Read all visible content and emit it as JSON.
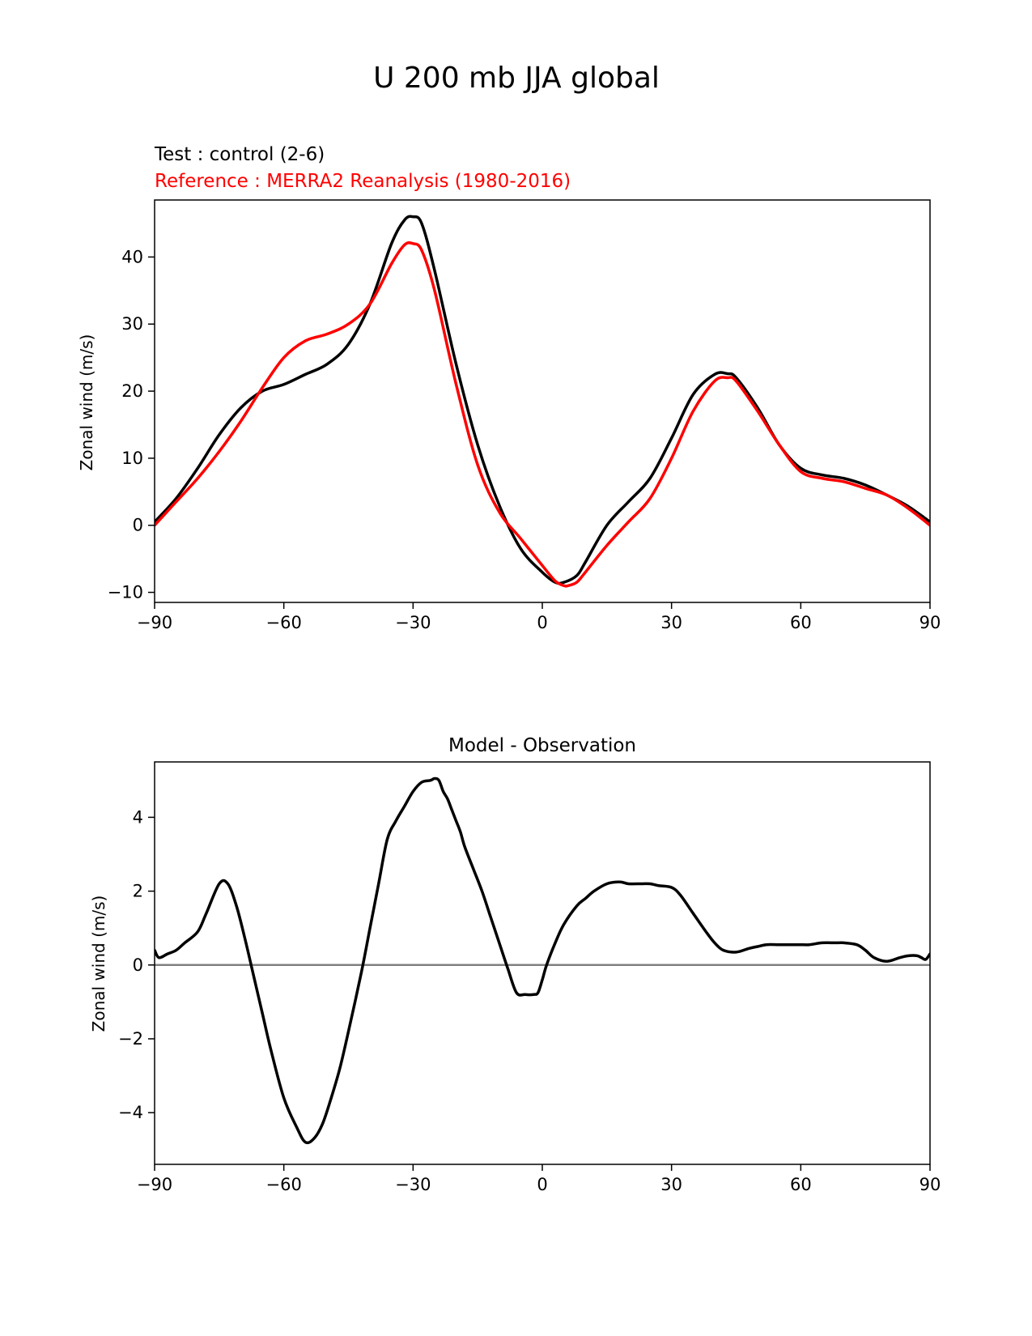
{
  "figure": {
    "suptitle": "U 200 mb JJA global"
  },
  "chart_data": [
    {
      "type": "line",
      "test_label": "Test : control (2-6)",
      "reference_label": "Reference : MERRA2 Reanalysis (1980-2016)",
      "ylabel": "Zonal wind (m/s)",
      "xlim": [
        -90,
        90
      ],
      "ylim": [
        -11.5,
        48.5
      ],
      "xticks": [
        -90,
        -60,
        -30,
        0,
        30,
        60,
        90
      ],
      "xtick_labels": [
        "−90",
        "−60",
        "−30",
        "0",
        "30",
        "60",
        "90"
      ],
      "yticks": [
        -10,
        0,
        10,
        20,
        30,
        40
      ],
      "ytick_labels": [
        "−10",
        "0",
        "10",
        "20",
        "30",
        "40"
      ],
      "grid": false,
      "colors": {
        "test": "#000000",
        "reference": "#ff0000"
      },
      "series": [
        {
          "id": "test",
          "x": [
            -90,
            -85,
            -80,
            -75,
            -70,
            -65,
            -60,
            -55,
            -50,
            -45,
            -40,
            -35,
            -32,
            -30,
            -28,
            -25,
            -20,
            -15,
            -10,
            -5,
            0,
            3,
            5,
            8,
            10,
            15,
            20,
            25,
            30,
            35,
            40,
            43,
            45,
            50,
            55,
            60,
            65,
            70,
            75,
            80,
            85,
            90
          ],
          "y": [
            0.5,
            4,
            8.5,
            13.5,
            17.5,
            20,
            21,
            22.5,
            24,
            27,
            33,
            42,
            45.5,
            46,
            45,
            38,
            24,
            12,
            3,
            -3.5,
            -7,
            -8.5,
            -8.5,
            -7.5,
            -5.5,
            0,
            3.5,
            7,
            13,
            19.5,
            22.5,
            22.6,
            22,
            17.5,
            12,
            8.5,
            7.5,
            7,
            6,
            4.5,
            2.8,
            0.5
          ]
        },
        {
          "id": "reference",
          "x": [
            -90,
            -85,
            -80,
            -75,
            -70,
            -65,
            -60,
            -55,
            -50,
            -45,
            -40,
            -35,
            -32,
            -30,
            -28,
            -25,
            -20,
            -15,
            -10,
            -5,
            0,
            3,
            5,
            6,
            8,
            10,
            15,
            20,
            25,
            30,
            35,
            40,
            43,
            45,
            50,
            55,
            60,
            65,
            70,
            75,
            80,
            85,
            90
          ],
          "y": [
            0,
            3.5,
            7,
            11,
            15.5,
            20.5,
            25,
            27.5,
            28.5,
            30,
            33,
            39,
            41.8,
            42,
            41,
            35,
            21,
            9,
            2,
            -2,
            -6,
            -8.3,
            -9,
            -9,
            -8.5,
            -7,
            -3,
            0.5,
            4,
            10,
            17,
            21.5,
            22,
            21.5,
            17,
            12,
            8,
            7,
            6.5,
            5.5,
            4.5,
            2.5,
            0
          ]
        }
      ]
    },
    {
      "type": "line",
      "title": "Model - Observation",
      "ylabel": "Zonal wind (m/s)",
      "xlim": [
        -90,
        90
      ],
      "ylim": [
        -5.4,
        5.5
      ],
      "xticks": [
        -90,
        -60,
        -30,
        0,
        30,
        60,
        90
      ],
      "xtick_labels": [
        "−90",
        "−60",
        "−30",
        "0",
        "30",
        "60",
        "90"
      ],
      "yticks": [
        -4,
        -2,
        0,
        2,
        4
      ],
      "ytick_labels": [
        "−4",
        "−2",
        "0",
        "2",
        "4"
      ],
      "grid": false,
      "zero_line": {
        "y": 0,
        "color": "#808080"
      },
      "colors": {
        "diff": "#000000"
      },
      "series": [
        {
          "id": "diff",
          "x": [
            -90,
            -89,
            -87,
            -85,
            -83,
            -80,
            -78,
            -75,
            -73,
            -71,
            -69,
            -67,
            -65,
            -63,
            -60,
            -57,
            -55,
            -53,
            -51,
            -49,
            -47,
            -45,
            -42,
            -40,
            -38,
            -36,
            -34,
            -32,
            -30,
            -28,
            -26,
            -25,
            -24,
            -23,
            -22,
            -21,
            -20,
            -19,
            -18,
            -16,
            -14,
            -12,
            -10,
            -8,
            -6,
            -4,
            -2,
            -1,
            0,
            1,
            3,
            5,
            8,
            10,
            12,
            15,
            18,
            20,
            23,
            25,
            27,
            30,
            32,
            35,
            38,
            40,
            42,
            45,
            48,
            50,
            52,
            55,
            58,
            60,
            62,
            65,
            68,
            70,
            73,
            75,
            77,
            80,
            83,
            85,
            87,
            88,
            89,
            90
          ],
          "y": [
            0.4,
            0.2,
            0.3,
            0.4,
            0.6,
            0.9,
            1.4,
            2.2,
            2.2,
            1.6,
            0.7,
            -0.3,
            -1.3,
            -2.3,
            -3.6,
            -4.4,
            -4.8,
            -4.7,
            -4.3,
            -3.6,
            -2.8,
            -1.8,
            -0.2,
            1.0,
            2.2,
            3.4,
            3.9,
            4.3,
            4.7,
            4.95,
            5.0,
            5.05,
            5.0,
            4.7,
            4.5,
            4.2,
            3.9,
            3.6,
            3.2,
            2.6,
            2.0,
            1.3,
            0.6,
            -0.1,
            -0.75,
            -0.8,
            -0.8,
            -0.75,
            -0.4,
            0.0,
            0.6,
            1.1,
            1.6,
            1.8,
            2.0,
            2.2,
            2.25,
            2.2,
            2.2,
            2.2,
            2.15,
            2.1,
            1.9,
            1.4,
            0.9,
            0.6,
            0.4,
            0.35,
            0.45,
            0.5,
            0.55,
            0.55,
            0.55,
            0.55,
            0.55,
            0.6,
            0.6,
            0.6,
            0.55,
            0.4,
            0.2,
            0.1,
            0.2,
            0.25,
            0.25,
            0.2,
            0.15,
            0.3
          ]
        }
      ]
    }
  ]
}
